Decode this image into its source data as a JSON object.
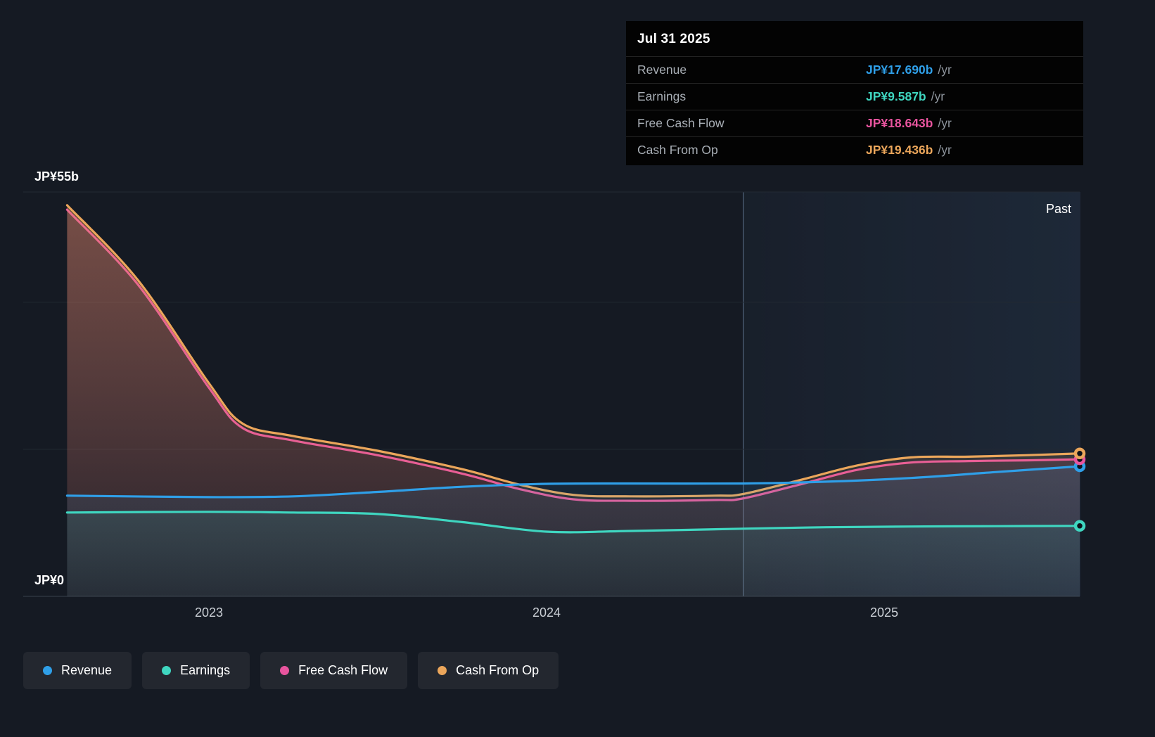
{
  "tooltip": {
    "date": "Jul 31 2025",
    "rows": [
      {
        "label": "Revenue",
        "value": "JP¥17.690b",
        "suffix": "/yr",
        "color": "#2f9fe8"
      },
      {
        "label": "Earnings",
        "value": "JP¥9.587b",
        "suffix": "/yr",
        "color": "#3fd6c0"
      },
      {
        "label": "Free Cash Flow",
        "value": "JP¥18.643b",
        "suffix": "/yr",
        "color": "#e8549e"
      },
      {
        "label": "Cash From Op",
        "value": "JP¥19.436b",
        "suffix": "/yr",
        "color": "#eba65b"
      }
    ]
  },
  "axis": {
    "y_top_label": "JP¥55b",
    "y_bottom_label": "JP¥0",
    "x_ticks": [
      "2023",
      "2024",
      "2025"
    ],
    "past_label": "Past"
  },
  "legend": [
    {
      "label": "Revenue",
      "color": "#2f9fe8"
    },
    {
      "label": "Earnings",
      "color": "#3fd6c0"
    },
    {
      "label": "Free Cash Flow",
      "color": "#e8549e"
    },
    {
      "label": "Cash From Op",
      "color": "#eba65b"
    }
  ],
  "chart_data": {
    "type": "area",
    "title": "Past financial performance",
    "y_unit": "JP¥ billions per year",
    "ylim": [
      0,
      55
    ],
    "x_range": [
      2022.45,
      2025.58
    ],
    "x_ticks": [
      2023,
      2024,
      2025
    ],
    "gridlines_y": [
      55,
      40,
      20,
      0
    ],
    "past_divider_x": 2024.58,
    "legend_position": "bottom-left",
    "series": [
      {
        "name": "Free Cash Flow",
        "color": "#e8549e",
        "x": [
          2022.58,
          2022.79,
          2023.0,
          2023.1,
          2023.25,
          2023.5,
          2023.75,
          2023.92,
          2024.08,
          2024.25,
          2024.5,
          2024.58,
          2024.75,
          2024.92,
          2025.08,
          2025.25,
          2025.42,
          2025.58
        ],
        "y": [
          52.6,
          42.4,
          28.4,
          22.9,
          21.2,
          19.2,
          16.7,
          14.6,
          13.2,
          13.0,
          13.1,
          13.3,
          15.2,
          17.2,
          18.2,
          18.4,
          18.5,
          18.643
        ]
      },
      {
        "name": "Cash From Op",
        "color": "#eba65b",
        "x": [
          2022.58,
          2022.79,
          2023.0,
          2023.1,
          2023.25,
          2023.5,
          2023.75,
          2023.92,
          2024.08,
          2024.25,
          2024.5,
          2024.58,
          2024.75,
          2024.92,
          2025.08,
          2025.25,
          2025.42,
          2025.58
        ],
        "y": [
          53.2,
          43.0,
          29.0,
          23.5,
          21.8,
          19.8,
          17.3,
          15.2,
          13.8,
          13.6,
          13.7,
          13.9,
          15.8,
          17.8,
          18.9,
          19.0,
          19.2,
          19.436
        ]
      },
      {
        "name": "Revenue",
        "color": "#2f9fe8",
        "x": [
          2022.58,
          2023.0,
          2023.25,
          2023.5,
          2023.75,
          2024.0,
          2024.25,
          2024.58,
          2024.83,
          2025.08,
          2025.33,
          2025.58
        ],
        "y": [
          13.7,
          13.5,
          13.6,
          14.2,
          14.9,
          15.3,
          15.35,
          15.35,
          15.6,
          16.1,
          16.9,
          17.69
        ]
      },
      {
        "name": "Earnings",
        "color": "#3fd6c0",
        "x": [
          2022.58,
          2023.0,
          2023.25,
          2023.5,
          2023.75,
          2024.0,
          2024.25,
          2024.58,
          2024.83,
          2025.08,
          2025.33,
          2025.58
        ],
        "y": [
          11.4,
          11.5,
          11.4,
          11.2,
          10.1,
          8.8,
          8.9,
          9.2,
          9.4,
          9.5,
          9.55,
          9.587
        ]
      }
    ]
  }
}
